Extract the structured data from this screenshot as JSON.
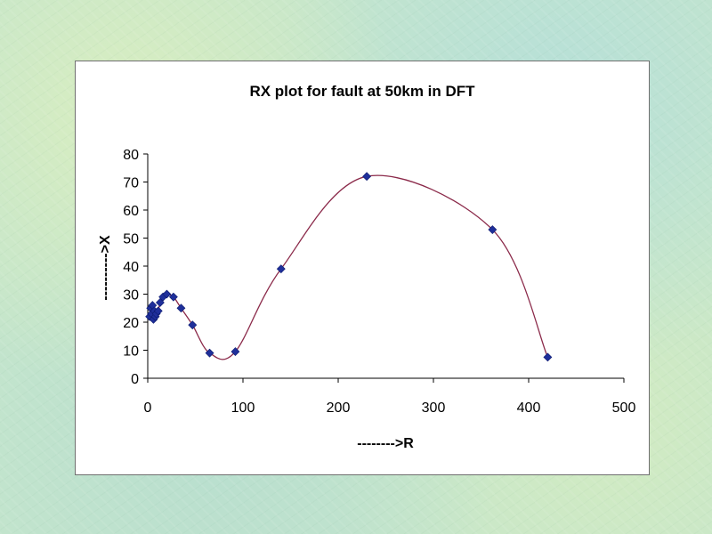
{
  "chart_data": {
    "type": "scatter",
    "title": "RX plot for fault at 50km in DFT",
    "xlabel": "-------->R",
    "ylabel": "---------->X",
    "xlim": [
      0,
      500
    ],
    "ylim": [
      0,
      80
    ],
    "xticks": [
      "0",
      "100",
      "200",
      "300",
      "400",
      "500"
    ],
    "yticks": [
      "0",
      "10",
      "20",
      "30",
      "40",
      "50",
      "60",
      "70",
      "80"
    ],
    "grid": false,
    "legend": "none",
    "smooth_line": true,
    "line_color": "#8b2a4a",
    "marker_color": "#1f2f9a",
    "points": [
      {
        "x": 2,
        "y": 22
      },
      {
        "x": 3,
        "y": 25
      },
      {
        "x": 4,
        "y": 23
      },
      {
        "x": 5,
        "y": 26
      },
      {
        "x": 6,
        "y": 21
      },
      {
        "x": 7,
        "y": 24
      },
      {
        "x": 8,
        "y": 22
      },
      {
        "x": 9,
        "y": 23
      },
      {
        "x": 11,
        "y": 24
      },
      {
        "x": 13,
        "y": 27
      },
      {
        "x": 16,
        "y": 29
      },
      {
        "x": 20,
        "y": 30
      },
      {
        "x": 27,
        "y": 29
      },
      {
        "x": 35,
        "y": 25
      },
      {
        "x": 47,
        "y": 19
      },
      {
        "x": 65,
        "y": 9
      },
      {
        "x": 92,
        "y": 9.5
      },
      {
        "x": 140,
        "y": 39
      },
      {
        "x": 230,
        "y": 72
      },
      {
        "x": 362,
        "y": 53
      },
      {
        "x": 420,
        "y": 7.5
      }
    ]
  }
}
